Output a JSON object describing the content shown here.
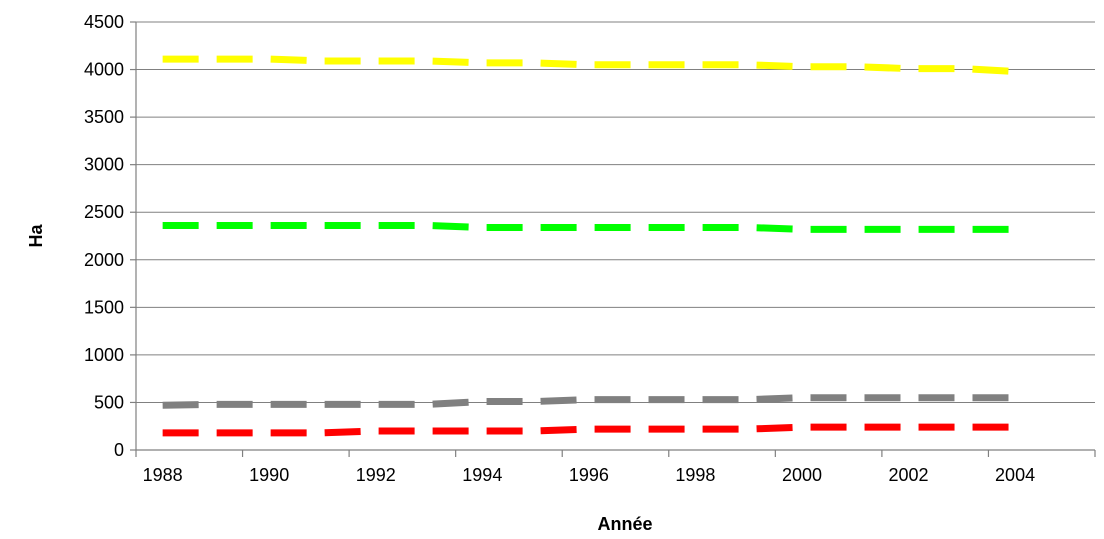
{
  "chart_data": {
    "type": "line",
    "title": "",
    "xlabel": "Année",
    "ylabel": "Ha",
    "x": [
      1988,
      1989,
      1990,
      1991,
      1992,
      1993,
      1994,
      1995,
      1996,
      1997,
      1998,
      1999,
      2000,
      2001,
      2002,
      2003,
      2004
    ],
    "x_tick_labels": [
      "1988",
      "1990",
      "1992",
      "1994",
      "1996",
      "1998",
      "2000",
      "2002",
      "2004"
    ],
    "y_tick_labels": [
      "0",
      "500",
      "1000",
      "1500",
      "2000",
      "2500",
      "3000",
      "3500",
      "4000",
      "4500"
    ],
    "ylim": [
      0,
      4500
    ],
    "grid": true,
    "legend": "none",
    "series": [
      {
        "color": "#FFFF00",
        "values": [
          4110,
          4110,
          4110,
          4090,
          4090,
          4090,
          4070,
          4070,
          4050,
          4050,
          4050,
          4050,
          4030,
          4030,
          4010,
          4010,
          3980
        ]
      },
      {
        "color": "#00FF00",
        "values": [
          2360,
          2360,
          2360,
          2360,
          2360,
          2360,
          2340,
          2340,
          2340,
          2340,
          2340,
          2340,
          2320,
          2320,
          2320,
          2320,
          2320
        ]
      },
      {
        "color": "#808080",
        "values": [
          470,
          480,
          480,
          480,
          480,
          480,
          510,
          510,
          530,
          530,
          530,
          530,
          550,
          550,
          550,
          550,
          550
        ]
      },
      {
        "color": "#FF0000",
        "values": [
          180,
          180,
          180,
          180,
          200,
          200,
          200,
          200,
          220,
          220,
          220,
          220,
          240,
          240,
          240,
          240,
          240
        ]
      }
    ]
  }
}
